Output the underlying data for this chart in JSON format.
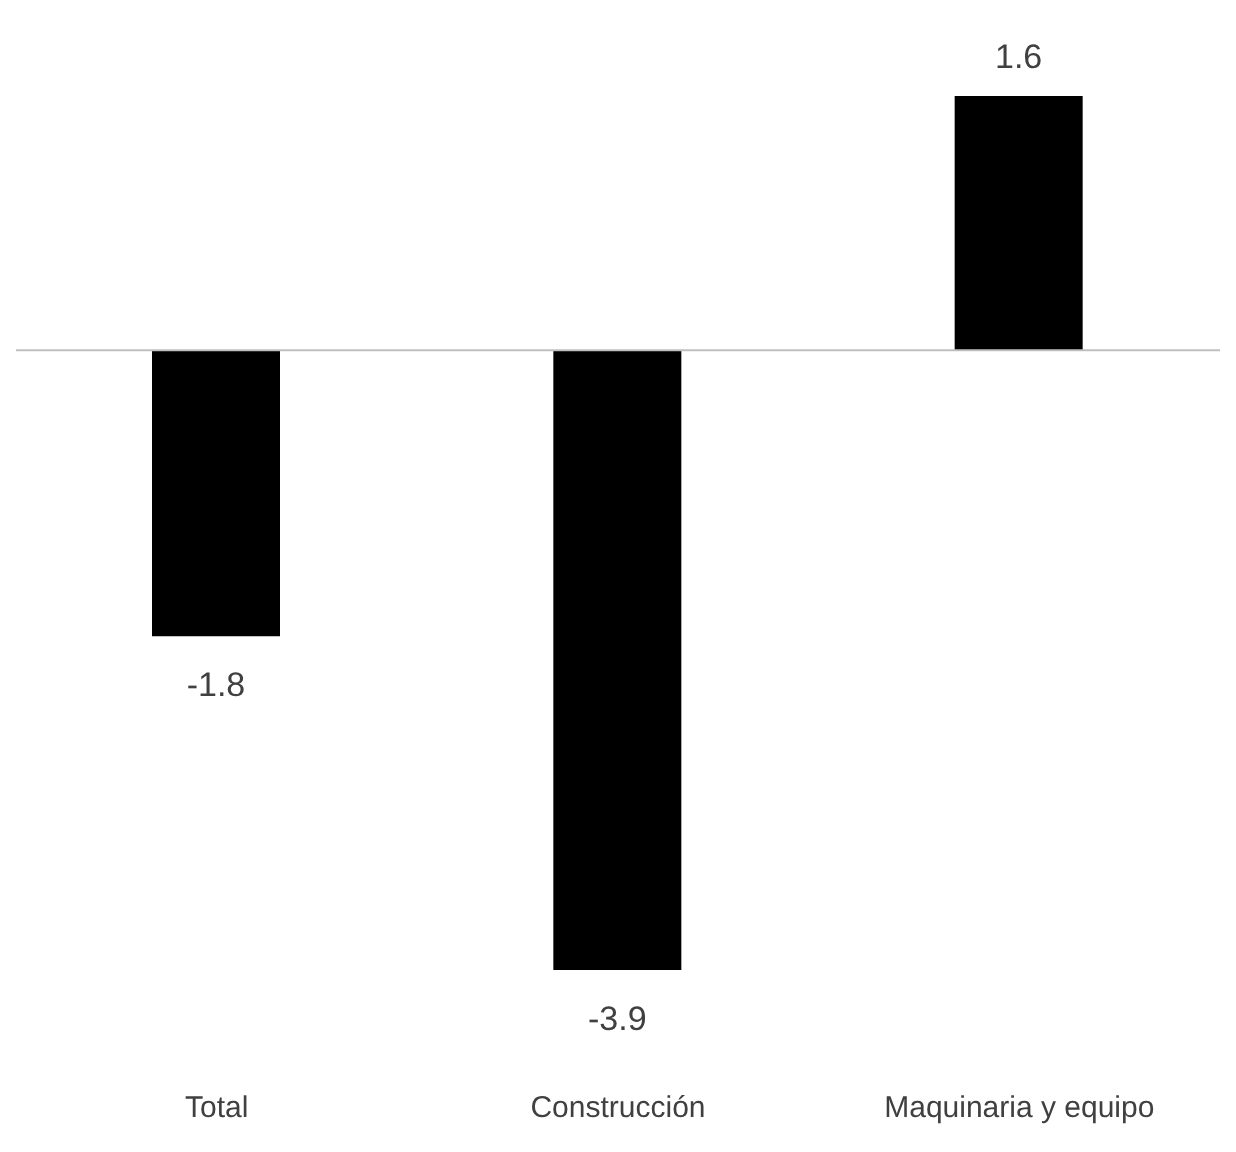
{
  "chart_data": {
    "type": "bar",
    "categories": [
      "Total",
      "Construcción",
      "Maquinaria y equipo"
    ],
    "values": [
      -1.8,
      -3.9,
      1.6
    ],
    "color": "#000000",
    "data_labels": true
  }
}
